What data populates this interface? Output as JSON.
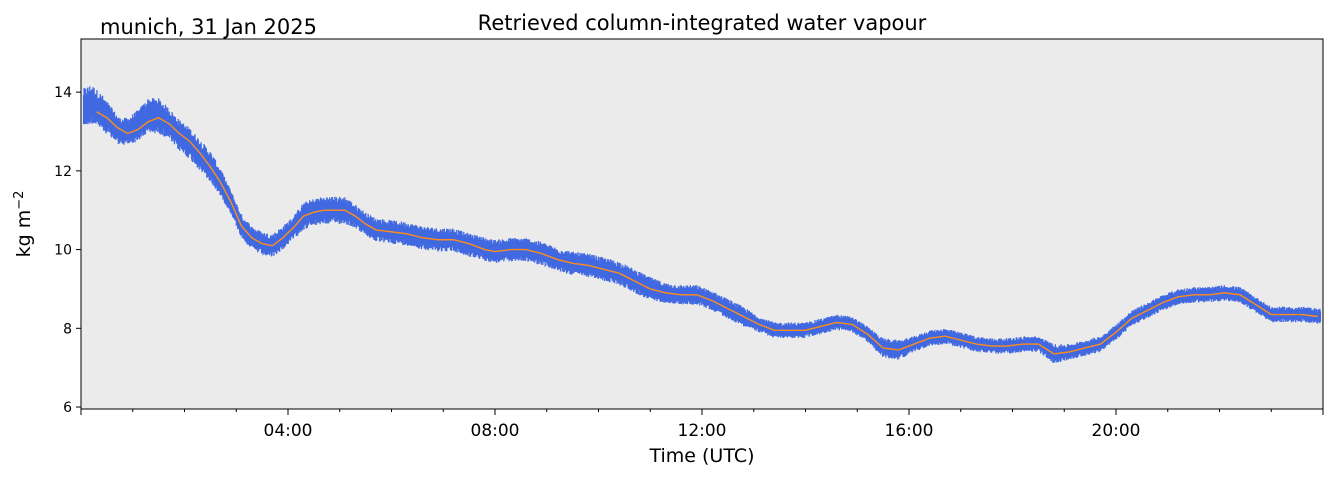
{
  "chart_data": {
    "type": "line",
    "title": "Retrieved column-integrated water vapour",
    "subtitle": "munich, 31 Jan 2025",
    "xlabel": "Time (UTC)",
    "ylabel": "kg m",
    "ylabel_superscript": "−2",
    "xlim": [
      0,
      24
    ],
    "ylim": [
      5.95,
      15.35
    ],
    "grid": false,
    "background": "#ebebeb",
    "x_ticks": [
      {
        "value": 4,
        "label": "04:00"
      },
      {
        "value": 8,
        "label": "08:00"
      },
      {
        "value": 12,
        "label": "12:00"
      },
      {
        "value": 16,
        "label": "16:00"
      },
      {
        "value": 20,
        "label": "20:00"
      }
    ],
    "y_ticks": [
      {
        "value": 6,
        "label": "6"
      },
      {
        "value": 8,
        "label": "8"
      },
      {
        "value": 10,
        "label": "10"
      },
      {
        "value": 12,
        "label": "12"
      },
      {
        "value": 14,
        "label": "14"
      }
    ],
    "series": [
      {
        "style": "scatter",
        "color": "#4169e1",
        "x": [
          0.05,
          0.2,
          0.4,
          0.6,
          0.75,
          0.9,
          1.1,
          1.3,
          1.5,
          1.7,
          1.9,
          2.1,
          2.3,
          2.5,
          2.7,
          2.9,
          3.1,
          3.3,
          3.5,
          3.7,
          3.9,
          4.1,
          4.3,
          4.5,
          4.7,
          4.9,
          5.1,
          5.3,
          5.5,
          5.7,
          6.0,
          6.3,
          6.6,
          6.9,
          7.2,
          7.4,
          7.7,
          8.0,
          8.3,
          8.6,
          8.9,
          9.2,
          9.5,
          9.8,
          10.1,
          10.4,
          10.7,
          11.0,
          11.3,
          11.6,
          11.9,
          12.2,
          12.5,
          12.8,
          13.1,
          13.4,
          13.7,
          14.0,
          14.3,
          14.6,
          14.9,
          15.2,
          15.5,
          15.8,
          16.1,
          16.4,
          16.7,
          17.0,
          17.3,
          17.6,
          17.9,
          18.2,
          18.5,
          18.8,
          19.1,
          19.4,
          19.7,
          20.0,
          20.3,
          20.6,
          20.9,
          21.2,
          21.5,
          21.8,
          22.1,
          22.4,
          22.7,
          23.0,
          23.3,
          23.6,
          23.95
        ],
        "y": [
          13.6,
          13.7,
          13.5,
          13.2,
          13.0,
          13.0,
          13.15,
          13.4,
          13.4,
          13.2,
          12.9,
          12.7,
          12.4,
          12.1,
          11.7,
          11.2,
          10.6,
          10.3,
          10.15,
          10.1,
          10.3,
          10.55,
          10.85,
          10.95,
          11.0,
          11.0,
          11.0,
          10.85,
          10.65,
          10.5,
          10.45,
          10.4,
          10.3,
          10.25,
          10.25,
          10.15,
          10.05,
          9.95,
          10.0,
          10.0,
          9.9,
          9.75,
          9.65,
          9.6,
          9.5,
          9.4,
          9.2,
          9.0,
          8.9,
          8.85,
          8.85,
          8.7,
          8.5,
          8.3,
          8.1,
          7.95,
          7.95,
          7.95,
          8.05,
          8.15,
          8.1,
          7.85,
          7.5,
          7.45,
          7.6,
          7.75,
          7.8,
          7.7,
          7.6,
          7.55,
          7.55,
          7.6,
          7.6,
          7.35,
          7.4,
          7.5,
          7.6,
          7.9,
          8.25,
          8.45,
          8.65,
          8.8,
          8.85,
          8.85,
          8.9,
          8.85,
          8.6,
          8.35,
          8.35,
          8.35,
          8.3
        ],
        "spread": [
          0.5,
          0.5,
          0.45,
          0.4,
          0.35,
          0.35,
          0.4,
          0.45,
          0.45,
          0.4,
          0.4,
          0.4,
          0.4,
          0.4,
          0.35,
          0.3,
          0.3,
          0.3,
          0.3,
          0.3,
          0.3,
          0.3,
          0.35,
          0.35,
          0.35,
          0.35,
          0.35,
          0.3,
          0.3,
          0.3,
          0.3,
          0.3,
          0.3,
          0.3,
          0.3,
          0.3,
          0.3,
          0.3,
          0.3,
          0.3,
          0.3,
          0.3,
          0.3,
          0.3,
          0.3,
          0.3,
          0.3,
          0.3,
          0.25,
          0.25,
          0.25,
          0.25,
          0.25,
          0.25,
          0.2,
          0.2,
          0.2,
          0.2,
          0.2,
          0.2,
          0.2,
          0.2,
          0.25,
          0.25,
          0.2,
          0.2,
          0.2,
          0.2,
          0.2,
          0.2,
          0.2,
          0.2,
          0.2,
          0.25,
          0.2,
          0.2,
          0.2,
          0.2,
          0.2,
          0.2,
          0.2,
          0.2,
          0.2,
          0.2,
          0.2,
          0.2,
          0.2,
          0.2,
          0.2,
          0.2,
          0.2
        ]
      },
      {
        "style": "line",
        "color": "#ff8c1a",
        "x": [
          0.3,
          0.5,
          0.7,
          0.9,
          1.1,
          1.3,
          1.5,
          1.7,
          1.9,
          2.1,
          2.3,
          2.5,
          2.7,
          2.9,
          3.1,
          3.3,
          3.5,
          3.7,
          3.9,
          4.1,
          4.3,
          4.5,
          4.7,
          4.9,
          5.1,
          5.3,
          5.5,
          5.7,
          6.0,
          6.3,
          6.6,
          6.9,
          7.2,
          7.5,
          7.8,
          8.0,
          8.3,
          8.6,
          8.9,
          9.2,
          9.5,
          9.8,
          10.1,
          10.4,
          10.7,
          11.0,
          11.3,
          11.6,
          11.9,
          12.2,
          12.5,
          12.8,
          13.1,
          13.4,
          13.7,
          14.0,
          14.3,
          14.6,
          14.9,
          15.2,
          15.5,
          15.8,
          16.1,
          16.4,
          16.7,
          17.0,
          17.3,
          17.6,
          17.9,
          18.2,
          18.5,
          18.8,
          19.1,
          19.4,
          19.7,
          20.0,
          20.3,
          20.6,
          20.9,
          21.2,
          21.5,
          21.8,
          22.1,
          22.4,
          22.7,
          23.0,
          23.3,
          23.6,
          23.9
        ],
        "y": [
          13.5,
          13.35,
          13.1,
          12.95,
          13.05,
          13.25,
          13.35,
          13.2,
          12.95,
          12.75,
          12.45,
          12.1,
          11.7,
          11.2,
          10.6,
          10.3,
          10.15,
          10.1,
          10.3,
          10.55,
          10.85,
          10.95,
          11.0,
          11.0,
          11.0,
          10.85,
          10.65,
          10.5,
          10.45,
          10.4,
          10.3,
          10.25,
          10.25,
          10.15,
          10.0,
          9.95,
          10.0,
          10.0,
          9.9,
          9.75,
          9.65,
          9.6,
          9.5,
          9.4,
          9.2,
          9.0,
          8.9,
          8.85,
          8.85,
          8.7,
          8.5,
          8.3,
          8.1,
          7.95,
          7.95,
          7.95,
          8.05,
          8.15,
          8.1,
          7.85,
          7.5,
          7.45,
          7.6,
          7.75,
          7.8,
          7.7,
          7.6,
          7.55,
          7.55,
          7.6,
          7.6,
          7.35,
          7.4,
          7.5,
          7.6,
          7.9,
          8.25,
          8.45,
          8.65,
          8.8,
          8.85,
          8.85,
          8.9,
          8.85,
          8.6,
          8.35,
          8.35,
          8.35,
          8.3
        ]
      }
    ]
  }
}
